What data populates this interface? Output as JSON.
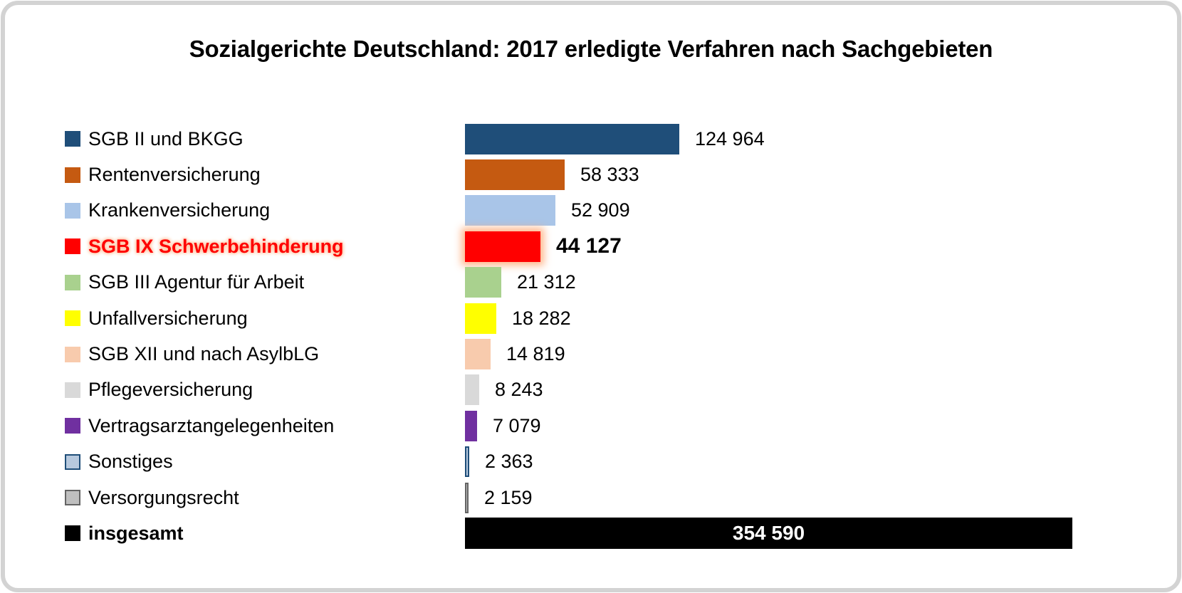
{
  "page": {
    "frame_border_color": "#D3D3D3",
    "background_color": "#FFFFFF"
  },
  "chart_data": {
    "type": "bar",
    "orientation": "horizontal",
    "title": "Sozialgerichte Deutschland: 2017 erledigte Verfahren nach Sachgebieten",
    "value_axis_max": 354590,
    "grid": false,
    "legend_position": "left-of-bars",
    "highlight_glow_color": "#FFC29E",
    "highlight_text_color": "#FF0000",
    "total_value_text_color": "#FFFFFF",
    "rows": [
      {
        "label": "SGB II und BKGG",
        "value": 124964,
        "display_value": "124 964",
        "color": "#1F4E79",
        "style": "normal"
      },
      {
        "label": "Rentenversicherung",
        "value": 58333,
        "display_value": "58 333",
        "color": "#C55A11",
        "style": "normal"
      },
      {
        "label": "Krankenversicherung",
        "value": 52909,
        "display_value": "52 909",
        "color": "#A9C5E8",
        "style": "normal"
      },
      {
        "label": "SGB IX Schwerbehinderung",
        "value": 44127,
        "display_value": "44 127",
        "color": "#FF0000",
        "style": "highlight"
      },
      {
        "label": "SGB III Agentur für Arbeit",
        "value": 21312,
        "display_value": "21 312",
        "color": "#A9D18E",
        "style": "normal"
      },
      {
        "label": "Unfallversicherung",
        "value": 18282,
        "display_value": "18 282",
        "color": "#FFFF00",
        "style": "normal"
      },
      {
        "label": "SGB XII und nach AsylbLG",
        "value": 14819,
        "display_value": "14 819",
        "color": "#F8CBAD",
        "style": "normal"
      },
      {
        "label": "Pflegeversicherung",
        "value": 8243,
        "display_value": "8 243",
        "color": "#D9D9D9",
        "style": "normal"
      },
      {
        "label": "Vertragsarztangelegenheiten",
        "value": 7079,
        "display_value": "7 079",
        "color": "#7030A0",
        "style": "normal"
      },
      {
        "label": "Sonstiges",
        "value": 2363,
        "display_value": "2 363",
        "color": "#B7C9DE",
        "border_color": "#1F4E79",
        "style": "outlined"
      },
      {
        "label": "Versorgungsrecht",
        "value": 2159,
        "display_value": "2 159",
        "color": "#BFBFBF",
        "border_color": "#646464",
        "style": "outlined"
      },
      {
        "label": "insgesamt",
        "value": 354590,
        "display_value": "354 590",
        "color": "#000000",
        "style": "total"
      }
    ]
  }
}
